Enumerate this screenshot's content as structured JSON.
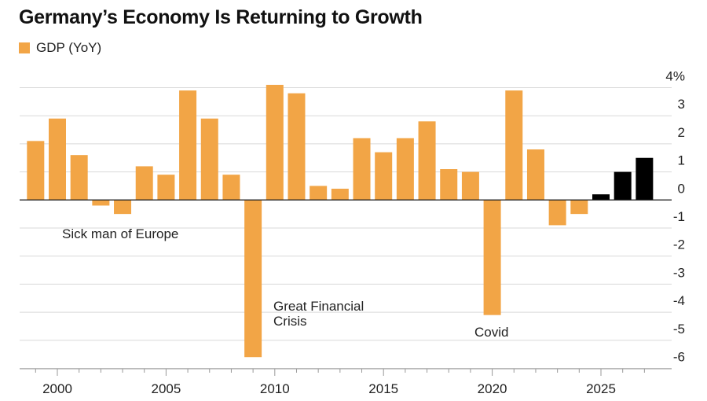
{
  "chart_data": {
    "type": "bar",
    "title": "Germany’s Economy Is Returning to Growth",
    "legend": [
      {
        "name": "GDP (YoY)",
        "color": "#f2a546"
      }
    ],
    "legend_placement": "top-left",
    "x": [
      1999,
      2000,
      2001,
      2002,
      2003,
      2004,
      2005,
      2006,
      2007,
      2008,
      2009,
      2010,
      2011,
      2012,
      2013,
      2014,
      2015,
      2016,
      2017,
      2018,
      2019,
      2020,
      2021,
      2022,
      2023,
      2024,
      2025,
      2026,
      2027
    ],
    "values": [
      2.1,
      2.9,
      1.6,
      -0.2,
      -0.5,
      1.2,
      0.9,
      3.9,
      2.9,
      0.9,
      -5.6,
      4.1,
      3.8,
      0.5,
      0.4,
      2.2,
      1.7,
      2.2,
      2.8,
      1.1,
      1.0,
      -4.1,
      3.9,
      1.8,
      -0.9,
      -0.5,
      0.2,
      1.0,
      1.5
    ],
    "forecast_from": 2025,
    "colors": {
      "actual": "#f2a546",
      "forecast": "#000000"
    },
    "x_ticks": [
      "2000",
      "2005",
      "2010",
      "2015",
      "2020",
      "2025"
    ],
    "y_ticks": [
      "4%",
      "3",
      "2",
      "1",
      "0",
      "-1",
      "-2",
      "-3",
      "-4",
      "-5",
      "-6"
    ],
    "ylim": [
      -6,
      4
    ],
    "y_axis_side": "right",
    "grid": true,
    "annotations": [
      {
        "text": "Sick man of Europe",
        "near_year": 2003
      },
      {
        "text": "Great Financial",
        "near_year": 2009
      },
      {
        "text": "Crisis",
        "near_year": 2009
      },
      {
        "text": "Covid",
        "near_year": 2020
      }
    ]
  }
}
